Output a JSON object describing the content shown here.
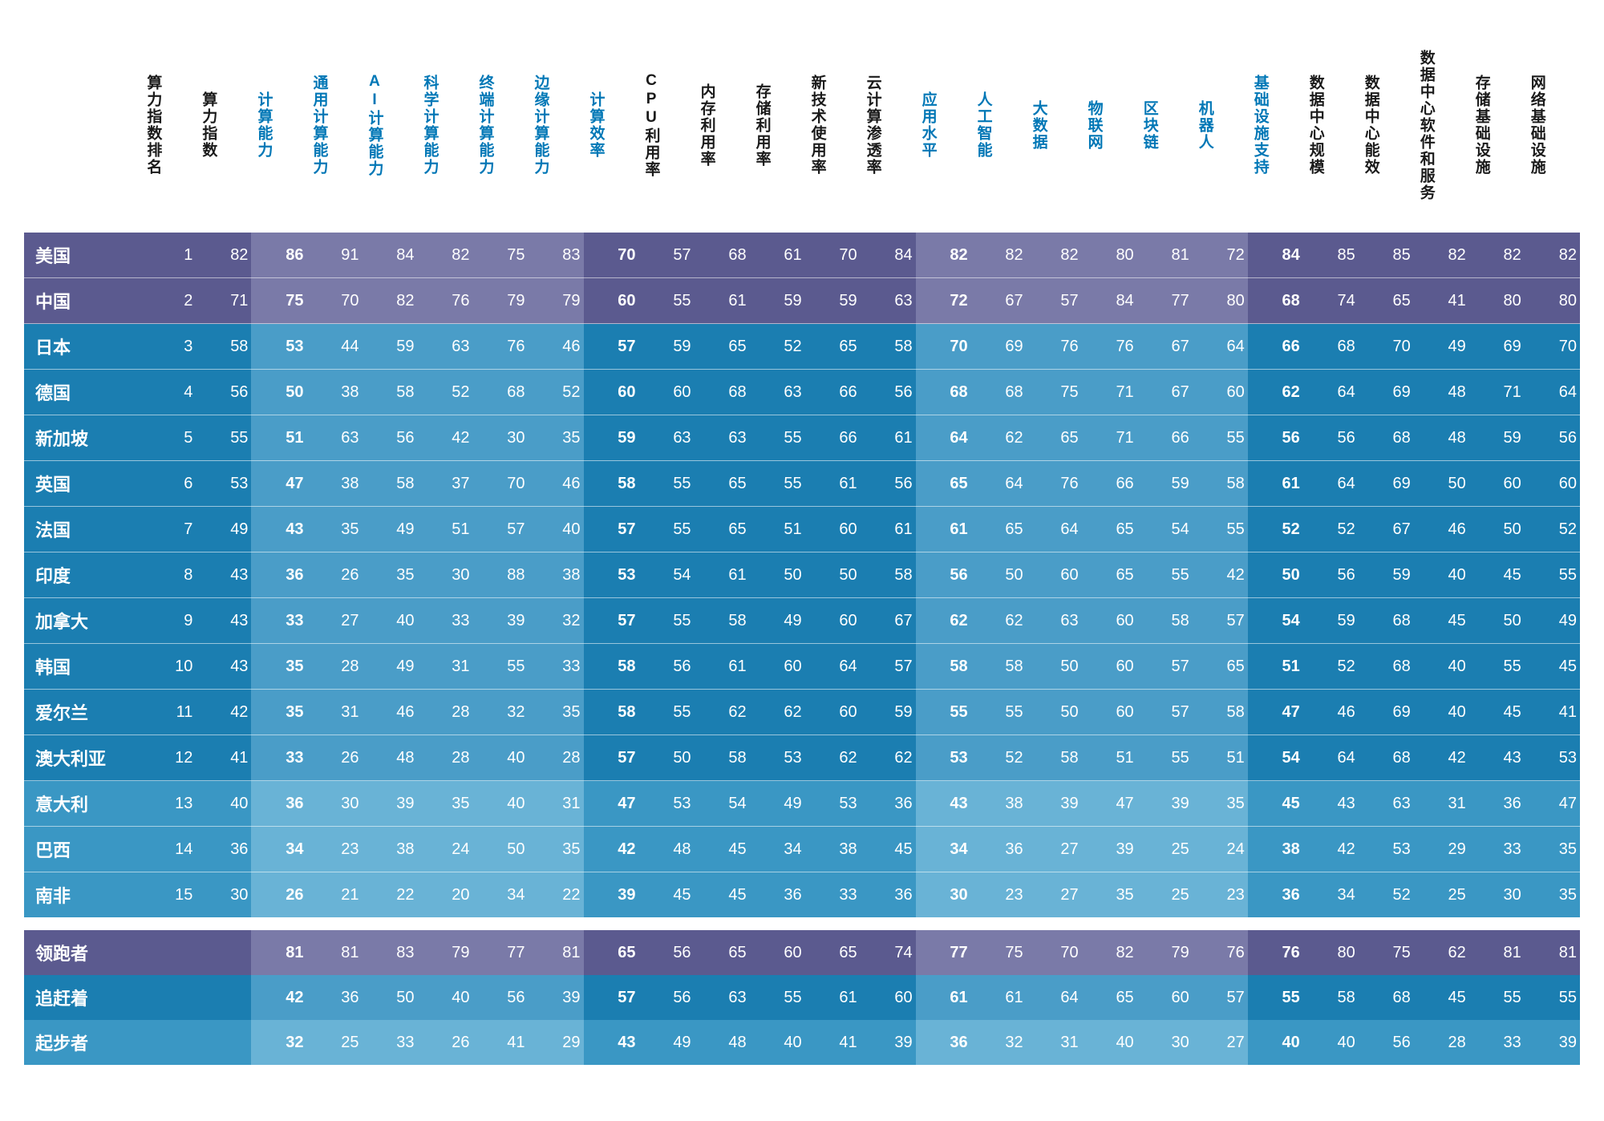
{
  "type": "table",
  "styling": {
    "background_color": "#ffffff",
    "header_text_color": "#1a1a1a",
    "header_highlight_color": "#0077b6",
    "cell_text_color": "#ffffff",
    "row_divider_color": "rgba(255,255,255,0.55)",
    "bands": {
      "purple": {
        "bg": "#5b5a8f",
        "hl": "#7a7aa8"
      },
      "mid_blue": {
        "bg": "#1b7eb1",
        "hl": "#4a9dc8"
      },
      "low_blue": {
        "bg": "#3a97c4",
        "hl": "#69b3d6"
      }
    },
    "header_fontsize_pt": 14,
    "cell_fontsize_pt": 15,
    "country_fontsize_pt": 16
  },
  "columns": [
    {
      "key": "country",
      "label": "",
      "highlight": false,
      "bold": true,
      "is_name": true
    },
    {
      "key": "rank",
      "label": "算力指数排名",
      "highlight": false,
      "bold": false
    },
    {
      "key": "index",
      "label": "算力指数",
      "highlight": false,
      "bold": false
    },
    {
      "key": "c3",
      "label": "计算能力",
      "highlight": true,
      "bold": true
    },
    {
      "key": "c4",
      "label": "通用计算能力",
      "highlight": true,
      "bold": false
    },
    {
      "key": "c5",
      "label": "AI计算能力",
      "highlight": true,
      "bold": false
    },
    {
      "key": "c6",
      "label": "科学计算能力",
      "highlight": true,
      "bold": false
    },
    {
      "key": "c7",
      "label": "终端计算能力",
      "highlight": true,
      "bold": false
    },
    {
      "key": "c8",
      "label": "边缘计算能力",
      "highlight": true,
      "bold": false
    },
    {
      "key": "c9",
      "label": "计算效率",
      "highlight": false,
      "bold": true
    },
    {
      "key": "c10",
      "label": "CPU利用率",
      "highlight": false,
      "bold": false
    },
    {
      "key": "c11",
      "label": "内存利用率",
      "highlight": false,
      "bold": false
    },
    {
      "key": "c12",
      "label": "存储利用率",
      "highlight": false,
      "bold": false
    },
    {
      "key": "c13",
      "label": "新技术使用率",
      "highlight": false,
      "bold": false
    },
    {
      "key": "c14",
      "label": "云计算渗透率",
      "highlight": false,
      "bold": false
    },
    {
      "key": "c15",
      "label": "应用水平",
      "highlight": true,
      "bold": true
    },
    {
      "key": "c16",
      "label": "人工智能",
      "highlight": true,
      "bold": false
    },
    {
      "key": "c17",
      "label": "大数据",
      "highlight": true,
      "bold": false
    },
    {
      "key": "c18",
      "label": "物联网",
      "highlight": true,
      "bold": false
    },
    {
      "key": "c19",
      "label": "区块链",
      "highlight": true,
      "bold": false
    },
    {
      "key": "c20",
      "label": "机器人",
      "highlight": true,
      "bold": false
    },
    {
      "key": "c21",
      "label": "基础设施支持",
      "highlight": false,
      "bold": true
    },
    {
      "key": "c22",
      "label": "数据中心规模",
      "highlight": false,
      "bold": false
    },
    {
      "key": "c23",
      "label": "数据中心能效",
      "highlight": false,
      "bold": false
    },
    {
      "key": "c24",
      "label": "数据中心软件和服务",
      "highlight": false,
      "bold": false
    },
    {
      "key": "c25",
      "label": "存储基础设施",
      "highlight": false,
      "bold": false
    },
    {
      "key": "c26",
      "label": "网络基础设施",
      "highlight": false,
      "bold": false
    }
  ],
  "rows": [
    {
      "band": "purple",
      "cells": [
        "美国",
        1,
        82,
        86,
        91,
        84,
        82,
        75,
        83,
        70,
        57,
        68,
        61,
        70,
        84,
        82,
        82,
        82,
        80,
        81,
        72,
        84,
        85,
        85,
        82,
        82,
        82
      ]
    },
    {
      "band": "purple",
      "cells": [
        "中国",
        2,
        71,
        75,
        70,
        82,
        76,
        79,
        79,
        60,
        55,
        61,
        59,
        59,
        63,
        72,
        67,
        57,
        84,
        77,
        80,
        68,
        74,
        65,
        41,
        80,
        80
      ]
    },
    {
      "band": "mid_blue",
      "cells": [
        "日本",
        3,
        58,
        53,
        44,
        59,
        63,
        76,
        46,
        57,
        59,
        65,
        52,
        65,
        58,
        70,
        69,
        76,
        76,
        67,
        64,
        66,
        68,
        70,
        49,
        69,
        70
      ]
    },
    {
      "band": "mid_blue",
      "cells": [
        "德国",
        4,
        56,
        50,
        38,
        58,
        52,
        68,
        52,
        60,
        60,
        68,
        63,
        66,
        56,
        68,
        68,
        75,
        71,
        67,
        60,
        62,
        64,
        69,
        48,
        71,
        64
      ]
    },
    {
      "band": "mid_blue",
      "cells": [
        "新加坡",
        5,
        55,
        51,
        63,
        56,
        42,
        30,
        35,
        59,
        63,
        63,
        55,
        66,
        61,
        64,
        62,
        65,
        71,
        66,
        55,
        56,
        56,
        68,
        48,
        59,
        56
      ]
    },
    {
      "band": "mid_blue",
      "cells": [
        "英国",
        6,
        53,
        47,
        38,
        58,
        37,
        70,
        46,
        58,
        55,
        65,
        55,
        61,
        56,
        65,
        64,
        76,
        66,
        59,
        58,
        61,
        64,
        69,
        50,
        60,
        60
      ]
    },
    {
      "band": "mid_blue",
      "cells": [
        "法国",
        7,
        49,
        43,
        35,
        49,
        51,
        57,
        40,
        57,
        55,
        65,
        51,
        60,
        61,
        61,
        65,
        64,
        65,
        54,
        55,
        52,
        52,
        67,
        46,
        50,
        52
      ]
    },
    {
      "band": "mid_blue",
      "cells": [
        "印度",
        8,
        43,
        36,
        26,
        35,
        30,
        88,
        38,
        53,
        54,
        61,
        50,
        50,
        58,
        56,
        50,
        60,
        65,
        55,
        42,
        50,
        56,
        59,
        40,
        45,
        55
      ]
    },
    {
      "band": "mid_blue",
      "cells": [
        "加拿大",
        9,
        43,
        33,
        27,
        40,
        33,
        39,
        32,
        57,
        55,
        58,
        49,
        60,
        67,
        62,
        62,
        63,
        60,
        58,
        57,
        54,
        59,
        68,
        45,
        50,
        49
      ]
    },
    {
      "band": "mid_blue",
      "cells": [
        "韩国",
        10,
        43,
        35,
        28,
        49,
        31,
        55,
        33,
        58,
        56,
        61,
        60,
        64,
        57,
        58,
        58,
        50,
        60,
        57,
        65,
        51,
        52,
        68,
        40,
        55,
        45
      ]
    },
    {
      "band": "mid_blue",
      "cells": [
        "爱尔兰",
        11,
        42,
        35,
        31,
        46,
        28,
        32,
        35,
        58,
        55,
        62,
        62,
        60,
        59,
        55,
        55,
        50,
        60,
        57,
        58,
        47,
        46,
        69,
        40,
        45,
        41
      ]
    },
    {
      "band": "mid_blue",
      "cells": [
        "澳大利亚",
        12,
        41,
        33,
        26,
        48,
        28,
        40,
        28,
        57,
        50,
        58,
        53,
        62,
        62,
        53,
        52,
        58,
        51,
        55,
        51,
        54,
        64,
        68,
        42,
        43,
        53
      ]
    },
    {
      "band": "low_blue",
      "cells": [
        "意大利",
        13,
        40,
        36,
        30,
        39,
        35,
        40,
        31,
        47,
        53,
        54,
        49,
        53,
        36,
        43,
        38,
        39,
        47,
        39,
        35,
        45,
        43,
        63,
        31,
        36,
        47
      ]
    },
    {
      "band": "low_blue",
      "cells": [
        "巴西",
        14,
        36,
        34,
        23,
        38,
        24,
        50,
        35,
        42,
        48,
        45,
        34,
        38,
        45,
        34,
        36,
        27,
        39,
        25,
        24,
        38,
        42,
        53,
        29,
        33,
        35
      ]
    },
    {
      "band": "low_blue",
      "cells": [
        "南非",
        15,
        30,
        26,
        21,
        22,
        20,
        34,
        22,
        39,
        45,
        45,
        36,
        33,
        36,
        30,
        23,
        27,
        35,
        25,
        23,
        36,
        34,
        52,
        25,
        30,
        35
      ]
    }
  ],
  "summary": [
    {
      "band": "purple",
      "cells": [
        "领跑者",
        "",
        "",
        81,
        81,
        83,
        79,
        77,
        81,
        65,
        56,
        65,
        60,
        65,
        74,
        77,
        75,
        70,
        82,
        79,
        76,
        76,
        80,
        75,
        62,
        81,
        81
      ]
    },
    {
      "band": "mid_blue",
      "cells": [
        "追赶着",
        "",
        "",
        42,
        36,
        50,
        40,
        56,
        39,
        57,
        56,
        63,
        55,
        61,
        60,
        61,
        61,
        64,
        65,
        60,
        57,
        55,
        58,
        68,
        45,
        55,
        55
      ]
    },
    {
      "band": "low_blue",
      "cells": [
        "起步者",
        "",
        "",
        32,
        25,
        33,
        26,
        41,
        29,
        43,
        49,
        48,
        40,
        41,
        39,
        36,
        32,
        31,
        40,
        30,
        27,
        40,
        40,
        56,
        28,
        33,
        39
      ]
    }
  ]
}
